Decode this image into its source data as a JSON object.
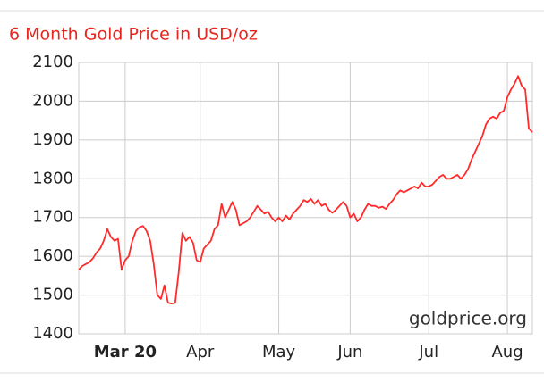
{
  "chart_data": {
    "type": "line",
    "title": "6 Month Gold Price in USD/oz",
    "watermark": "goldprice.org",
    "color": "#ff2a2a",
    "grid": true,
    "ylim": [
      1400,
      2100
    ],
    "yticks": [
      1400,
      1500,
      1600,
      1700,
      1800,
      1900,
      2000,
      2100
    ],
    "categories": [
      null,
      null,
      null,
      null,
      null,
      null,
      null,
      null,
      null,
      null,
      null,
      null,
      null,
      "Mar 20",
      null,
      null,
      null,
      null,
      null,
      null,
      null,
      null,
      null,
      null,
      null,
      null,
      null,
      null,
      null,
      null,
      null,
      null,
      null,
      null,
      "Apr",
      null,
      null,
      null,
      null,
      null,
      null,
      null,
      null,
      null,
      null,
      null,
      null,
      null,
      null,
      null,
      null,
      null,
      null,
      null,
      null,
      null,
      "May",
      null,
      null,
      null,
      null,
      null,
      null,
      null,
      null,
      null,
      null,
      null,
      null,
      null,
      null,
      null,
      null,
      null,
      null,
      null,
      "Jun",
      null,
      null,
      null,
      null,
      null,
      null,
      null,
      null,
      null,
      null,
      null,
      null,
      null,
      null,
      null,
      null,
      null,
      null,
      null,
      null,
      null,
      "Jul",
      null,
      null,
      null,
      null,
      null,
      null,
      null,
      null,
      null,
      null,
      null,
      null,
      null,
      null,
      null,
      null,
      null,
      null,
      null,
      null,
      null,
      "Aug",
      null,
      null,
      null,
      null,
      null,
      null,
      null
    ],
    "values": [
      1565,
      1575,
      1580,
      1585,
      1595,
      1610,
      1620,
      1640,
      1670,
      1650,
      1640,
      1645,
      1565,
      1590,
      1600,
      1640,
      1665,
      1675,
      1678,
      1665,
      1640,
      1580,
      1500,
      1490,
      1525,
      1480,
      1478,
      1480,
      1560,
      1660,
      1640,
      1650,
      1635,
      1590,
      1585,
      1620,
      1630,
      1640,
      1670,
      1680,
      1735,
      1700,
      1720,
      1740,
      1720,
      1680,
      1685,
      1690,
      1700,
      1715,
      1730,
      1720,
      1710,
      1715,
      1700,
      1690,
      1700,
      1690,
      1705,
      1695,
      1710,
      1720,
      1730,
      1745,
      1740,
      1748,
      1735,
      1745,
      1730,
      1735,
      1720,
      1712,
      1720,
      1730,
      1740,
      1730,
      1700,
      1710,
      1690,
      1700,
      1720,
      1735,
      1730,
      1730,
      1725,
      1728,
      1722,
      1735,
      1745,
      1760,
      1770,
      1765,
      1770,
      1775,
      1780,
      1775,
      1790,
      1780,
      1780,
      1785,
      1795,
      1805,
      1810,
      1800,
      1800,
      1805,
      1810,
      1800,
      1810,
      1825,
      1850,
      1870,
      1890,
      1910,
      1940,
      1955,
      1960,
      1955,
      1970,
      1975,
      2010,
      2030,
      2045,
      2065,
      2040,
      2030,
      1930,
      1920
    ]
  }
}
